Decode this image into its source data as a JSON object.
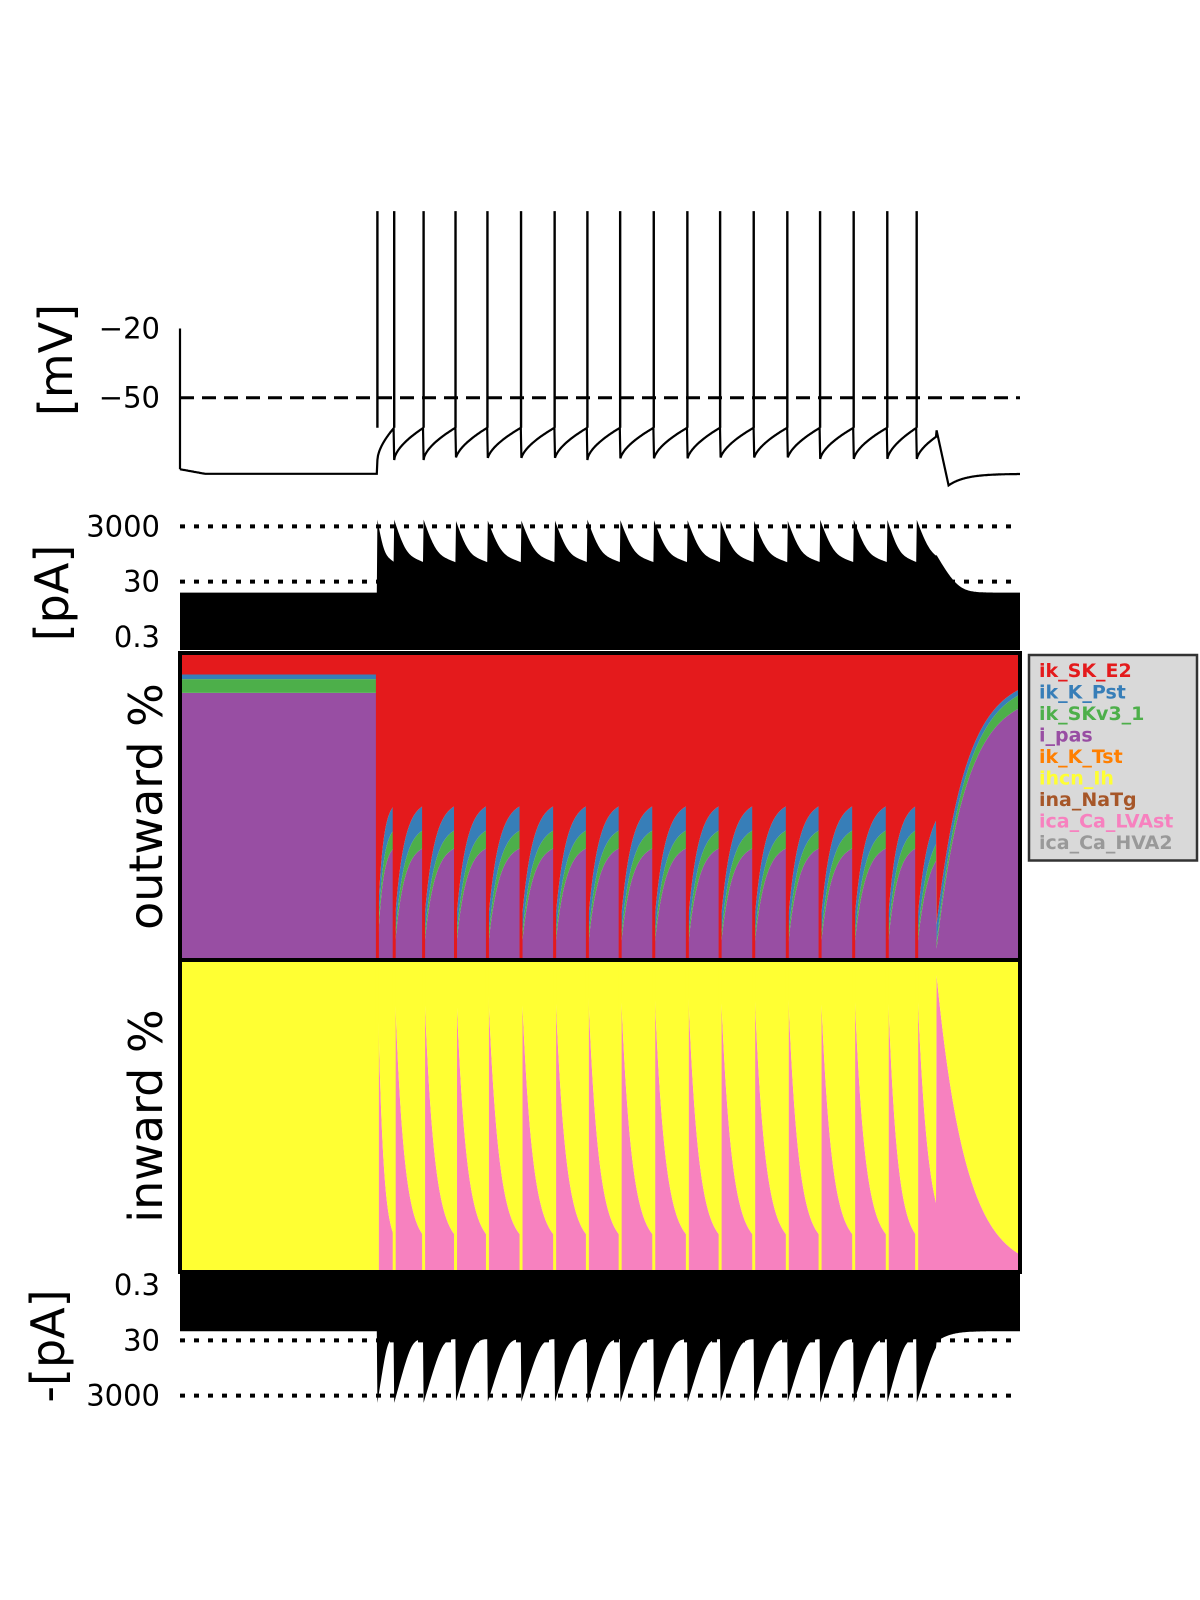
{
  "chart_data": {
    "type": "area",
    "time_range": [
      0,
      1
    ],
    "stimulus": {
      "start": 0.235,
      "end": 0.9
    },
    "spike_times": [
      0.235,
      0.255,
      0.29,
      0.328,
      0.366,
      0.406,
      0.446,
      0.485,
      0.524,
      0.564,
      0.604,
      0.643,
      0.683,
      0.723,
      0.762,
      0.802,
      0.842,
      0.877
    ],
    "voltage_panel": {
      "ylabel": "[mV]",
      "ticks": [
        "−20",
        "−50"
      ],
      "tick_values": [
        -20,
        -50
      ],
      "threshold_line": -50,
      "ylim": [
        -90,
        40
      ],
      "rest": -83,
      "spike_peak": 30,
      "ahp": -77,
      "pre_spike": -63
    },
    "outward_total_panel": {
      "ylabel": "[pA]",
      "ticks": [
        "3000",
        "30",
        "0.3"
      ],
      "tick_values": [
        3000,
        30,
        0.3
      ],
      "scale": "log",
      "rest_level": 12,
      "spike_level": 5000,
      "interspike_level": 300
    },
    "outward_percent_panel": {
      "ylabel": "outward %",
      "rest_fractions": {
        "ik_SK_E2": 0.07,
        "ik_K_Pst": 0.015,
        "ik_SKv3_1": 0.045,
        "i_pas": 0.87
      },
      "post_spike_fractions": {
        "ik_SK_E2": 0.9,
        "ik_K_Pst": 0.06,
        "ik_SKv3_1": 0.02,
        "i_pas": 0.02
      },
      "pre_spike_fractions": {
        "ik_SK_E2": 0.48,
        "ik_K_Pst": 0.08,
        "ik_SKv3_1": 0.06,
        "i_pas": 0.38
      }
    },
    "inward_percent_panel": {
      "ylabel": "inward %",
      "rest_fractions": {
        "ihcn_Ih": 1.0,
        "ica_Ca_LVAst": 0.0
      },
      "post_spike_fractions": {
        "ihcn_Ih": 0.03,
        "ica_Ca_LVAst": 0.97
      },
      "pre_spike_fractions": {
        "ihcn_Ih": 0.92,
        "ica_Ca_LVAst": 0.08
      }
    },
    "inward_total_panel": {
      "ylabel": "-[pA]",
      "ticks": [
        "0.3",
        "30",
        "3000"
      ],
      "tick_values": [
        0.3,
        30,
        3000
      ],
      "scale": "log"
    },
    "legend": {
      "placement": "right",
      "entries": [
        {
          "name": "ik_SK_E2",
          "color": "#e41a1c"
        },
        {
          "name": "ik_K_Pst",
          "color": "#377eb8"
        },
        {
          "name": "ik_SKv3_1",
          "color": "#4daf4a"
        },
        {
          "name": "i_pas",
          "color": "#984ea3"
        },
        {
          "name": "ik_K_Tst",
          "color": "#ff7f00"
        },
        {
          "name": "ihcn_Ih",
          "color": "#ffff33"
        },
        {
          "name": "ina_NaTg",
          "color": "#a65628"
        },
        {
          "name": "ica_Ca_LVAst",
          "color": "#f781bf"
        },
        {
          "name": "ica_Ca_HVA2",
          "color": "#999999"
        }
      ]
    }
  }
}
